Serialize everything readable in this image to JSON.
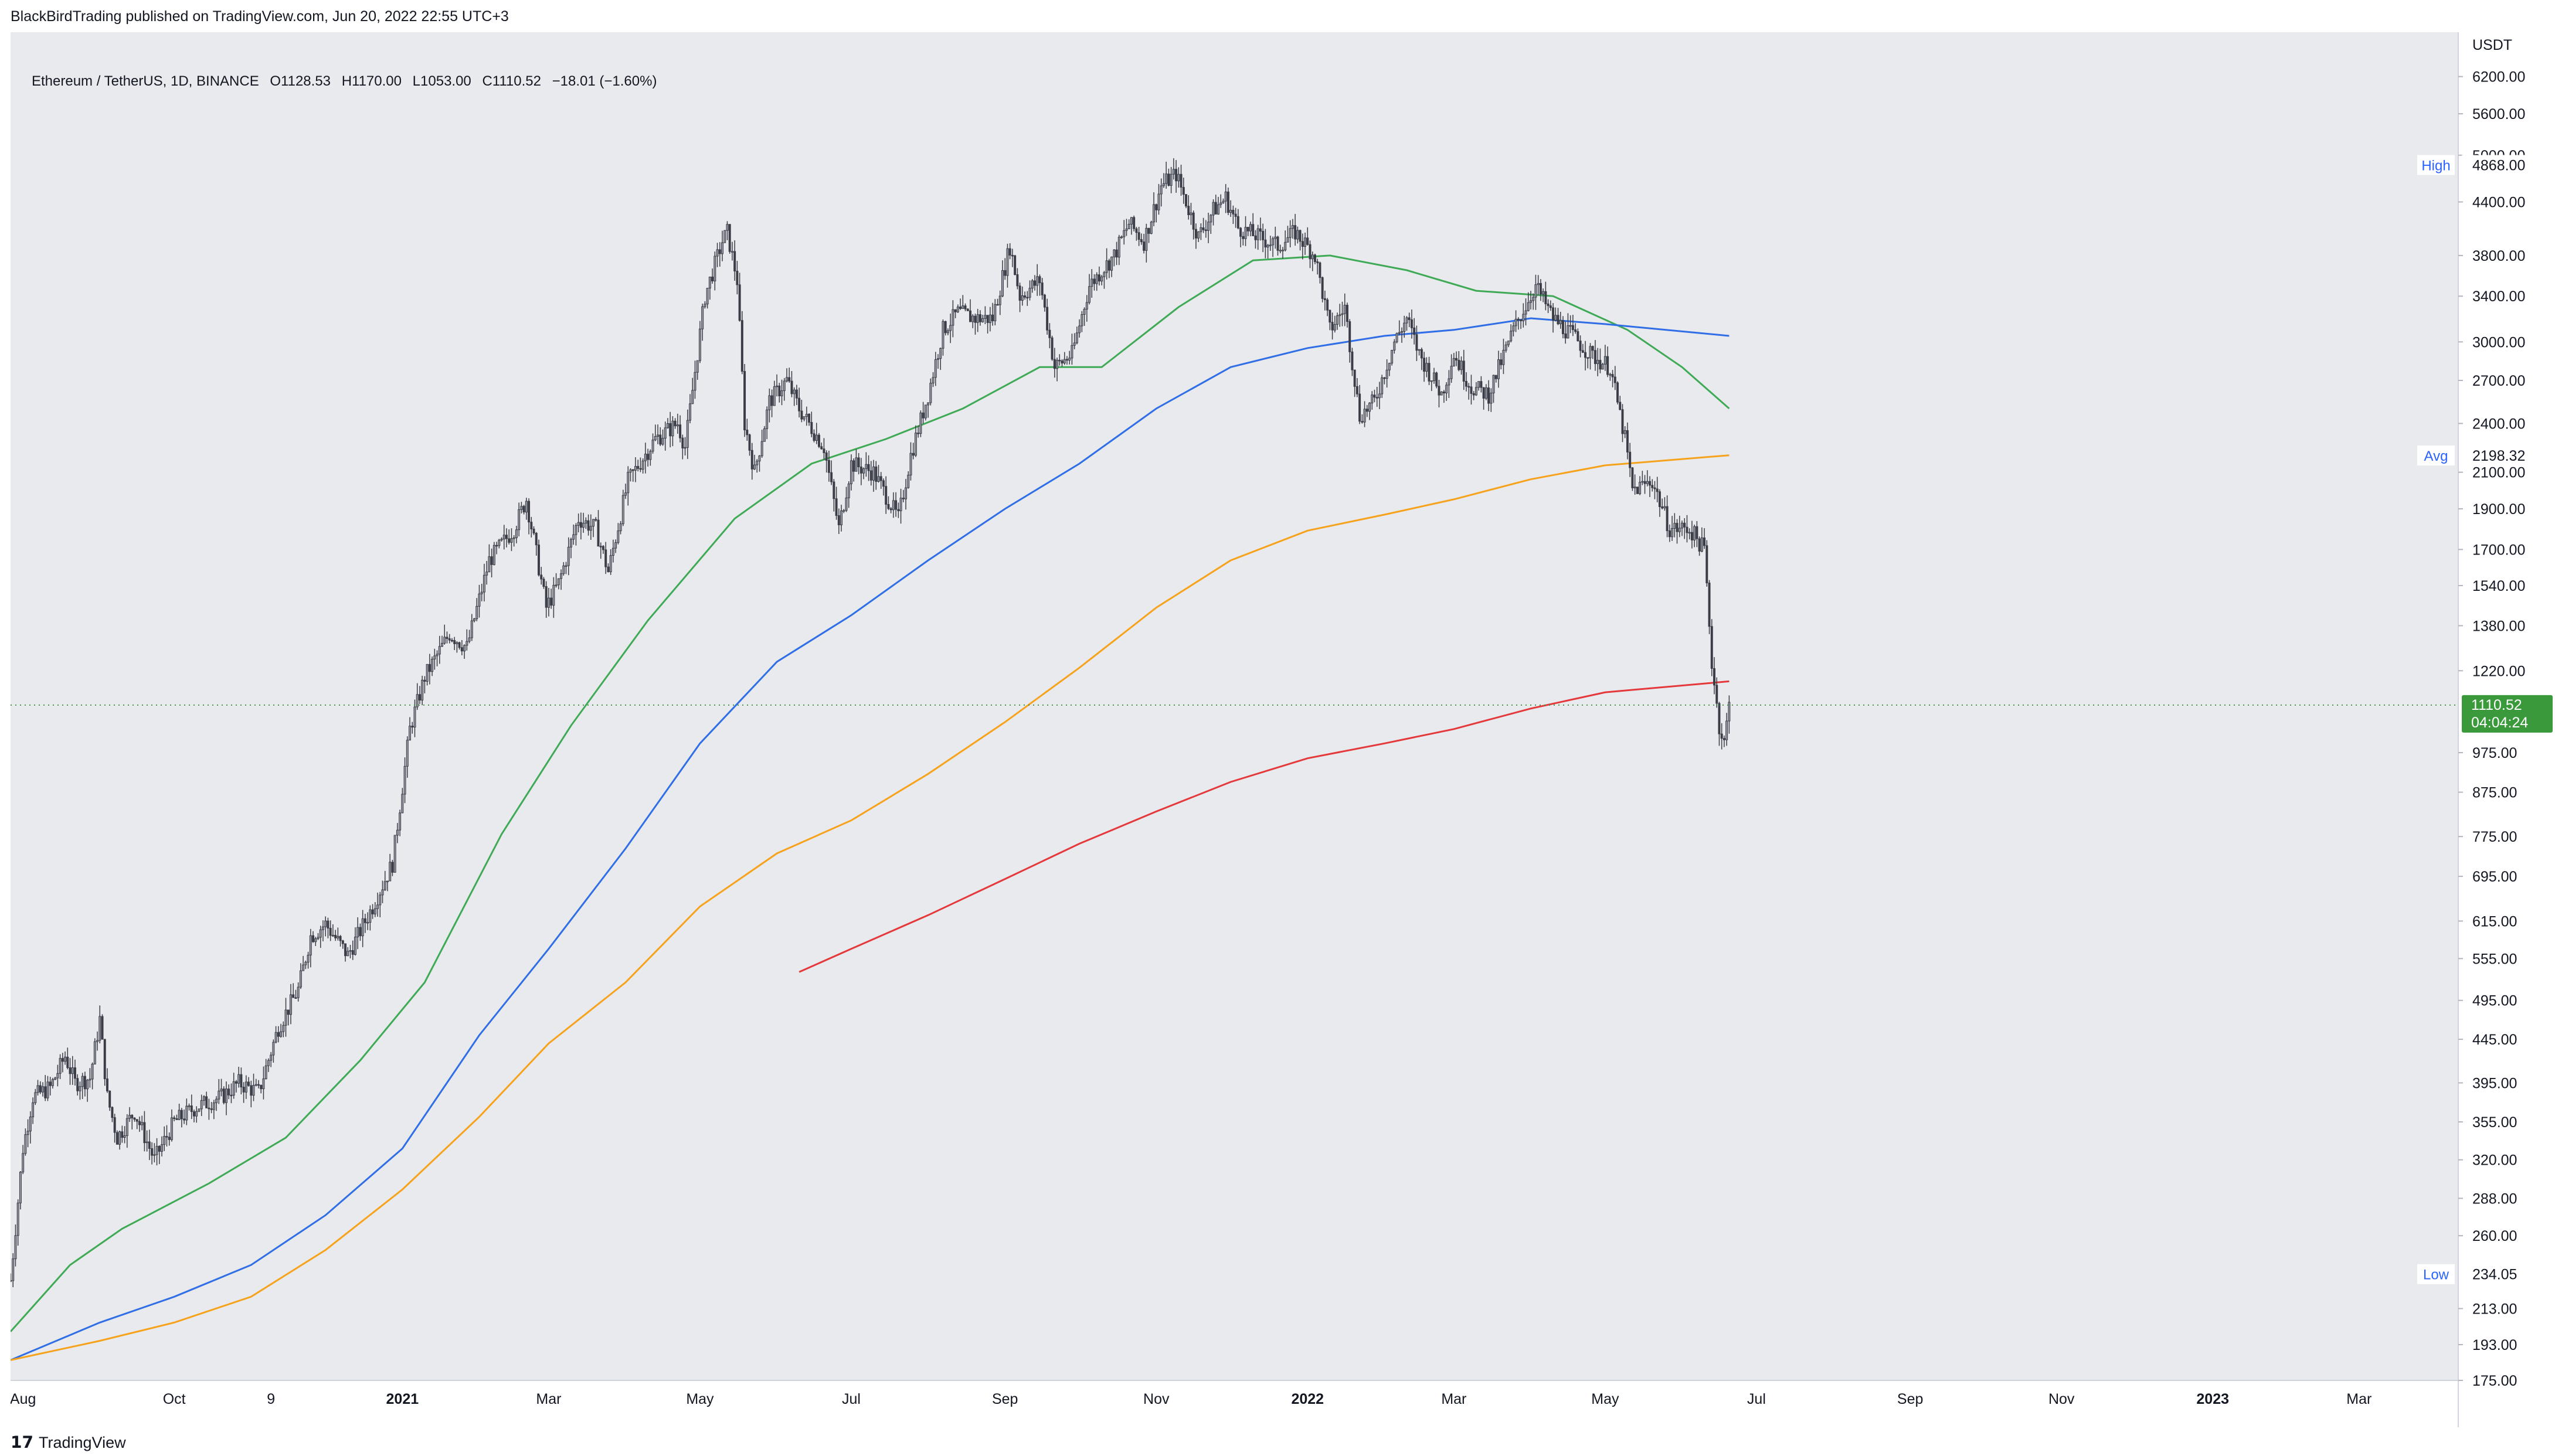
{
  "header": {
    "published": "BlackBirdTrading published on TradingView.com, Jun 20, 2022 22:55 UTC+3"
  },
  "legend": {
    "symbol": "Ethereum / TetherUS, 1D, BINANCE",
    "open": "O1128.53",
    "high": "H1170.00",
    "low": "L1053.00",
    "close": "C1110.52",
    "change": "−18.01 (−1.60%)"
  },
  "footer": {
    "logo_icon": "tradingview-logo-icon",
    "brand": "TradingView"
  },
  "colors": {
    "background": "#e9eaed",
    "candle": "#3a3d47",
    "ma_green": "#3faa55",
    "ma_blue": "#2f6ee6",
    "ma_orange": "#f7a21b",
    "ma_red": "#e5383b",
    "last_price": "#3a9a3b"
  },
  "chart_data": {
    "type": "candlestick",
    "scale": "log",
    "currency_label": "USDT",
    "ylim": [
      175,
      7000
    ],
    "y_ticks": [
      "6200.00",
      "5600.00",
      "5000.00",
      "4400.00",
      "3800.00",
      "3400.00",
      "3000.00",
      "2700.00",
      "2400.00",
      "2100.00",
      "1900.00",
      "1700.00",
      "1540.00",
      "1380.00",
      "1220.00",
      "975.00",
      "875.00",
      "775.00",
      "695.00",
      "615.00",
      "555.00",
      "495.00",
      "445.00",
      "395.00",
      "355.00",
      "320.00",
      "288.00",
      "260.00",
      "213.00",
      "193.00",
      "175.00"
    ],
    "x_ticks": [
      {
        "label": "Aug",
        "date": "2020-08-01"
      },
      {
        "label": "Oct",
        "date": "2020-10-01"
      },
      {
        "label": "9",
        "date": "2020-11-09"
      },
      {
        "label": "2021",
        "date": "2021-01-01",
        "bold": true
      },
      {
        "label": "Mar",
        "date": "2021-03-01"
      },
      {
        "label": "May",
        "date": "2021-05-01"
      },
      {
        "label": "Jul",
        "date": "2021-07-01"
      },
      {
        "label": "Sep",
        "date": "2021-09-01"
      },
      {
        "label": "Nov",
        "date": "2021-11-01"
      },
      {
        "label": "2022",
        "date": "2022-01-01",
        "bold": true
      },
      {
        "label": "Mar",
        "date": "2022-03-01"
      },
      {
        "label": "May",
        "date": "2022-05-01"
      },
      {
        "label": "Jul",
        "date": "2022-07-01"
      },
      {
        "label": "Sep",
        "date": "2022-09-01"
      },
      {
        "label": "Nov",
        "date": "2022-11-01"
      },
      {
        "label": "2023",
        "date": "2023-01-01",
        "bold": true
      },
      {
        "label": "Mar",
        "date": "2023-03-01"
      }
    ],
    "x_range": [
      "2020-07-27",
      "2023-04-10"
    ],
    "price_key": [
      [
        "2020-07-27",
        230
      ],
      [
        "2020-08-01",
        330
      ],
      [
        "2020-08-05",
        380
      ],
      [
        "2020-08-12",
        390
      ],
      [
        "2020-08-18",
        425
      ],
      [
        "2020-08-22",
        395
      ],
      [
        "2020-08-28",
        400
      ],
      [
        "2020-09-01",
        470
      ],
      [
        "2020-09-04",
        380
      ],
      [
        "2020-09-08",
        340
      ],
      [
        "2020-09-15",
        365
      ],
      [
        "2020-09-23",
        320
      ],
      [
        "2020-10-01",
        355
      ],
      [
        "2020-10-10",
        370
      ],
      [
        "2020-10-20",
        380
      ],
      [
        "2020-10-27",
        395
      ],
      [
        "2020-11-04",
        385
      ],
      [
        "2020-11-12",
        460
      ],
      [
        "2020-11-20",
        510
      ],
      [
        "2020-11-25",
        590
      ],
      [
        "2020-12-01",
        610
      ],
      [
        "2020-12-10",
        560
      ],
      [
        "2020-12-20",
        640
      ],
      [
        "2020-12-28",
        720
      ],
      [
        "2021-01-04",
        1040
      ],
      [
        "2021-01-10",
        1200
      ],
      [
        "2021-01-20",
        1350
      ],
      [
        "2021-01-27",
        1300
      ],
      [
        "2021-02-05",
        1650
      ],
      [
        "2021-02-15",
        1800
      ],
      [
        "2021-02-20",
        1950
      ],
      [
        "2021-02-28",
        1450
      ],
      [
        "2021-03-05",
        1550
      ],
      [
        "2021-03-13",
        1850
      ],
      [
        "2021-03-20",
        1800
      ],
      [
        "2021-03-25",
        1600
      ],
      [
        "2021-04-02",
        2050
      ],
      [
        "2021-04-13",
        2300
      ],
      [
        "2021-04-22",
        2400
      ],
      [
        "2021-04-25",
        2250
      ],
      [
        "2021-05-03",
        3400
      ],
      [
        "2021-05-10",
        3950
      ],
      [
        "2021-05-12",
        4050
      ],
      [
        "2021-05-16",
        3550
      ],
      [
        "2021-05-19",
        2400
      ],
      [
        "2021-05-23",
        2100
      ],
      [
        "2021-05-29",
        2550
      ],
      [
        "2021-06-05",
        2700
      ],
      [
        "2021-06-10",
        2500
      ],
      [
        "2021-06-20",
        2250
      ],
      [
        "2021-06-26",
        1800
      ],
      [
        "2021-07-01",
        2150
      ],
      [
        "2021-07-10",
        2100
      ],
      [
        "2021-07-20",
        1850
      ],
      [
        "2021-07-25",
        2200
      ],
      [
        "2021-08-01",
        2600
      ],
      [
        "2021-08-07",
        3100
      ],
      [
        "2021-08-13",
        3250
      ],
      [
        "2021-08-20",
        3200
      ],
      [
        "2021-08-27",
        3200
      ],
      [
        "2021-09-03",
        3900
      ],
      [
        "2021-09-07",
        3400
      ],
      [
        "2021-09-15",
        3550
      ],
      [
        "2021-09-21",
        2800
      ],
      [
        "2021-09-28",
        2900
      ],
      [
        "2021-10-05",
        3500
      ],
      [
        "2021-10-15",
        3800
      ],
      [
        "2021-10-21",
        4150
      ],
      [
        "2021-10-27",
        3950
      ],
      [
        "2021-11-03",
        4600
      ],
      [
        "2021-11-09",
        4750
      ],
      [
        "2021-11-18",
        4000
      ],
      [
        "2021-11-24",
        4300
      ],
      [
        "2021-11-29",
        4450
      ],
      [
        "2021-12-04",
        4100
      ],
      [
        "2021-12-12",
        4000
      ],
      [
        "2021-12-20",
        3900
      ],
      [
        "2021-12-27",
        4050
      ],
      [
        "2022-01-04",
        3800
      ],
      [
        "2022-01-10",
        3100
      ],
      [
        "2022-01-16",
        3300
      ],
      [
        "2022-01-22",
        2450
      ],
      [
        "2022-01-28",
        2550
      ],
      [
        "2022-02-05",
        3000
      ],
      [
        "2022-02-10",
        3200
      ],
      [
        "2022-02-15",
        2900
      ],
      [
        "2022-02-24",
        2600
      ],
      [
        "2022-03-01",
        2900
      ],
      [
        "2022-03-08",
        2650
      ],
      [
        "2022-03-15",
        2600
      ],
      [
        "2022-03-25",
        3100
      ],
      [
        "2022-04-03",
        3500
      ],
      [
        "2022-04-10",
        3200
      ],
      [
        "2022-04-18",
        3050
      ],
      [
        "2022-04-25",
        2900
      ],
      [
        "2022-05-03",
        2800
      ],
      [
        "2022-05-09",
        2300
      ],
      [
        "2022-05-12",
        2000
      ],
      [
        "2022-05-20",
        2050
      ],
      [
        "2022-05-27",
        1800
      ],
      [
        "2022-06-04",
        1800
      ],
      [
        "2022-06-10",
        1700
      ],
      [
        "2022-06-13",
        1250
      ],
      [
        "2022-06-16",
        1050
      ],
      [
        "2022-06-18",
        1000
      ],
      [
        "2022-06-20",
        1110
      ]
    ],
    "series": [
      {
        "color_key": "ma_green",
        "points": [
          [
            "2020-07-27",
            200
          ],
          [
            "2020-08-20",
            240
          ],
          [
            "2020-09-10",
            265
          ],
          [
            "2020-10-15",
            300
          ],
          [
            "2020-11-15",
            340
          ],
          [
            "2020-12-15",
            420
          ],
          [
            "2021-01-10",
            520
          ],
          [
            "2021-02-10",
            780
          ],
          [
            "2021-03-10",
            1050
          ],
          [
            "2021-04-10",
            1400
          ],
          [
            "2021-05-15",
            1850
          ],
          [
            "2021-06-15",
            2150
          ],
          [
            "2021-07-15",
            2300
          ],
          [
            "2021-08-15",
            2500
          ],
          [
            "2021-09-15",
            2800
          ],
          [
            "2021-10-10",
            2800
          ],
          [
            "2021-11-10",
            3300
          ],
          [
            "2021-12-10",
            3750
          ],
          [
            "2022-01-10",
            3800
          ],
          [
            "2022-02-10",
            3650
          ],
          [
            "2022-03-10",
            3450
          ],
          [
            "2022-04-10",
            3400
          ],
          [
            "2022-05-10",
            3100
          ],
          [
            "2022-06-01",
            2800
          ],
          [
            "2022-06-20",
            2500
          ]
        ]
      },
      {
        "color_key": "ma_blue",
        "points": [
          [
            "2020-07-27",
            185
          ],
          [
            "2020-09-01",
            205
          ],
          [
            "2020-10-01",
            220
          ],
          [
            "2020-11-01",
            240
          ],
          [
            "2020-12-01",
            275
          ],
          [
            "2021-01-01",
            330
          ],
          [
            "2021-02-01",
            450
          ],
          [
            "2021-03-01",
            570
          ],
          [
            "2021-04-01",
            750
          ],
          [
            "2021-05-01",
            1000
          ],
          [
            "2021-06-01",
            1250
          ],
          [
            "2021-07-01",
            1420
          ],
          [
            "2021-08-01",
            1650
          ],
          [
            "2021-09-01",
            1900
          ],
          [
            "2021-10-01",
            2150
          ],
          [
            "2021-11-01",
            2500
          ],
          [
            "2021-12-01",
            2800
          ],
          [
            "2022-01-01",
            2950
          ],
          [
            "2022-02-01",
            3050
          ],
          [
            "2022-03-01",
            3100
          ],
          [
            "2022-04-01",
            3200
          ],
          [
            "2022-05-01",
            3150
          ],
          [
            "2022-06-20",
            3050
          ]
        ]
      },
      {
        "color_key": "ma_orange",
        "points": [
          [
            "2020-07-27",
            185
          ],
          [
            "2020-09-01",
            195
          ],
          [
            "2020-10-01",
            205
          ],
          [
            "2020-11-01",
            220
          ],
          [
            "2020-12-01",
            250
          ],
          [
            "2021-01-01",
            295
          ],
          [
            "2021-02-01",
            360
          ],
          [
            "2021-03-01",
            440
          ],
          [
            "2021-04-01",
            520
          ],
          [
            "2021-05-01",
            640
          ],
          [
            "2021-06-01",
            740
          ],
          [
            "2021-07-01",
            810
          ],
          [
            "2021-08-01",
            920
          ],
          [
            "2021-09-01",
            1060
          ],
          [
            "2021-10-01",
            1230
          ],
          [
            "2021-11-01",
            1450
          ],
          [
            "2021-12-01",
            1650
          ],
          [
            "2022-01-01",
            1790
          ],
          [
            "2022-02-01",
            1870
          ],
          [
            "2022-03-01",
            1950
          ],
          [
            "2022-04-01",
            2060
          ],
          [
            "2022-05-01",
            2140
          ],
          [
            "2022-06-20",
            2200
          ]
        ]
      },
      {
        "color_key": "ma_red",
        "points": [
          [
            "2021-06-10",
            535
          ],
          [
            "2021-07-01",
            570
          ],
          [
            "2021-08-01",
            625
          ],
          [
            "2021-09-01",
            690
          ],
          [
            "2021-10-01",
            760
          ],
          [
            "2021-11-01",
            830
          ],
          [
            "2021-12-01",
            900
          ],
          [
            "2022-01-01",
            960
          ],
          [
            "2022-02-01",
            1000
          ],
          [
            "2022-03-01",
            1040
          ],
          [
            "2022-04-01",
            1100
          ],
          [
            "2022-05-01",
            1150
          ],
          [
            "2022-06-20",
            1185
          ]
        ]
      }
    ],
    "markers": [
      {
        "name": "high-marker",
        "label": "High",
        "value_label": "4868.00",
        "value": 4868
      },
      {
        "name": "avg-marker",
        "label": "Avg",
        "value_label": "2198.32",
        "value": 2198.32
      },
      {
        "name": "low-marker",
        "label": "Low",
        "value_label": "234.05",
        "value": 234.05
      }
    ],
    "last_price": {
      "value": 1110.52,
      "label": "1110.52",
      "countdown": "04:04:24"
    }
  }
}
